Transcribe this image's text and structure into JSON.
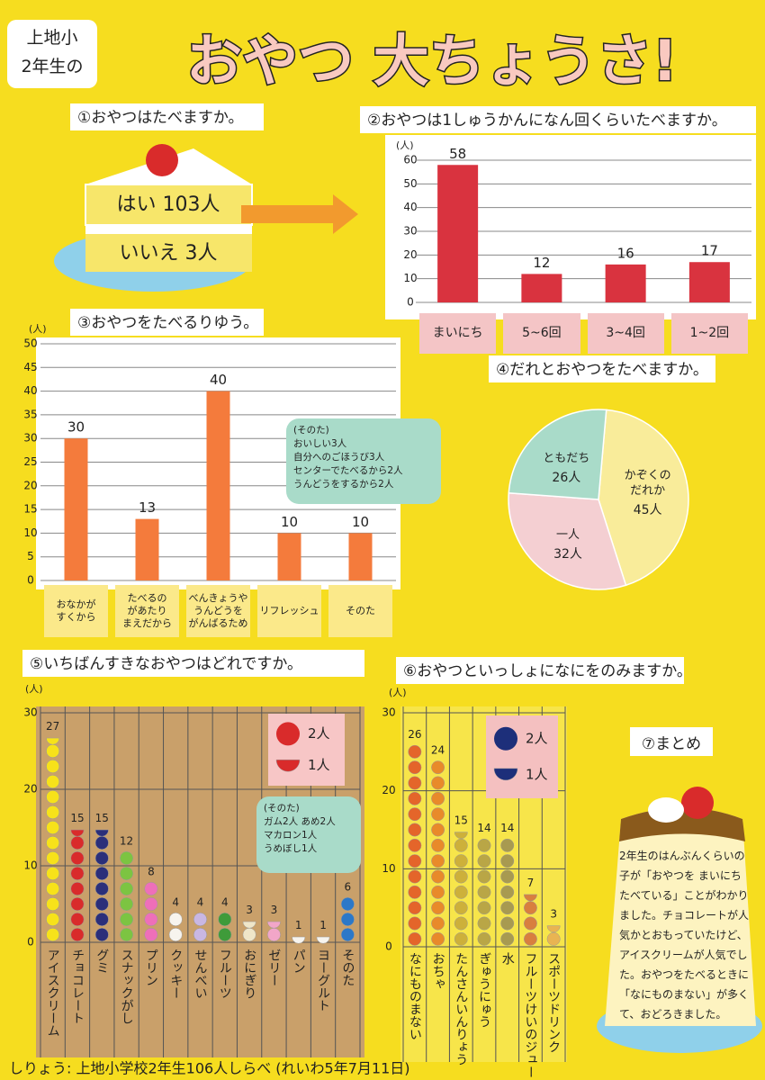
{
  "header": {
    "school": "上地小\n2年生の",
    "title": "おやつ 大ちょうさ!"
  },
  "section1": {
    "heading": "①おやつはたべますか。",
    "yes": "はい 103人",
    "no": "いいえ 3人"
  },
  "chart_data": [
    {
      "type": "bar",
      "title": "②おやつは1しゅうかんになん回くらいたべますか。",
      "unit": "(人)",
      "categories": [
        "まいにち",
        "5~6回",
        "3~4回",
        "1~2回"
      ],
      "values": [
        58,
        12,
        16,
        17
      ],
      "color": "#d9333f",
      "ylim": [
        0,
        60
      ],
      "yticks": [
        0,
        10,
        20,
        30,
        40,
        50,
        60
      ],
      "grid": true
    },
    {
      "type": "bar",
      "title": "③おやつをたべるりゆう。",
      "unit": "(人)",
      "categories": [
        "おなかが\nすくから",
        "たべるの\nがあたり\nまえだから",
        "べんきょうや\nうんどうを\nがんばるため",
        "リフレッシュ",
        "そのた"
      ],
      "values": [
        30,
        13,
        40,
        10,
        10
      ],
      "color": "#f47b3c",
      "ylim": [
        0,
        50
      ],
      "yticks": [
        0,
        5,
        10,
        15,
        20,
        25,
        30,
        35,
        40,
        45,
        50
      ],
      "grid": true,
      "annotation": "(そのた)\nおいしい3人\n自分へのごほうび3人\nセンターでたべるから2人\nうんどうをするから2人"
    },
    {
      "type": "pie",
      "title": "④だれとおやつをたべますか。",
      "categories": [
        "かぞくの\nだれか",
        "一人",
        "ともだち"
      ],
      "values": [
        45,
        32,
        26
      ],
      "value_labels": [
        "45人",
        "32人",
        "26人"
      ],
      "colors": [
        "#f9ec9a",
        "#f4cfd2",
        "#a9dbc9"
      ]
    },
    {
      "type": "dot",
      "title": "⑤いちばんすきなおやつはどれですか。",
      "unit": "(人)",
      "categories": [
        "アイスクリーム",
        "チョコレート",
        "グミ",
        "スナックがし",
        "プリン",
        "クッキー",
        "せんべい",
        "フルーツ",
        "おにぎり",
        "ゼリー",
        "パン",
        "ヨーグルト",
        "そのた"
      ],
      "values": [
        27,
        15,
        15,
        12,
        8,
        4,
        4,
        4,
        3,
        3,
        1,
        1,
        6
      ],
      "colors": [
        "#f7e21a",
        "#d92b2b",
        "#2b2f7a",
        "#7cc442",
        "#ee6fb9",
        "#f7f4ee",
        "#c9b7e2",
        "#3f9b3a",
        "#efe6c8",
        "#f2a6c8",
        "#f7f4ee",
        "#f7f4ee",
        "#2c78c8"
      ],
      "ylim": [
        0,
        30
      ],
      "yticks": [
        0,
        10,
        20,
        30
      ],
      "legend": [
        "2人",
        "1人"
      ],
      "legend_color": "#d92b2b",
      "annotation": "(そのた)\nガム2人 あめ2人\nマカロン1人\nうめぼし1人"
    },
    {
      "type": "dot",
      "title": "⑥おやつといっしょになにをのみますか。",
      "unit": "(人)",
      "categories": [
        "なにものまない",
        "おちゃ",
        "たんさんいんりょう",
        "ぎゅうにゅう",
        "水",
        "フルーツけいのジュース",
        "スポーツドリンク"
      ],
      "values": [
        26,
        24,
        15,
        14,
        14,
        7,
        3
      ],
      "colors": [
        "#e4652a",
        "#e88a2a",
        "#cdb03a",
        "#b9a646",
        "#a89a50",
        "#d87f3f",
        "#e9b452"
      ],
      "ylim": [
        0,
        30
      ],
      "yticks": [
        0,
        10,
        20,
        30
      ],
      "legend": [
        "2人",
        "1人"
      ],
      "legend_color": "#1d2f7a"
    }
  ],
  "summary": {
    "heading": "⑦まとめ",
    "text": "2年生のはんぶんくらいの子が「おやつを まいにちたべている」ことがわかりました。チョコレートが人気かとおもっていたけど、アイスクリームが人気でした。おやつをたべるときに「なにものまない」が多くて、おどろきました。"
  },
  "footer": "しりょう: 上地小学校2年生106人しらべ (れいわ5年7月11日)"
}
